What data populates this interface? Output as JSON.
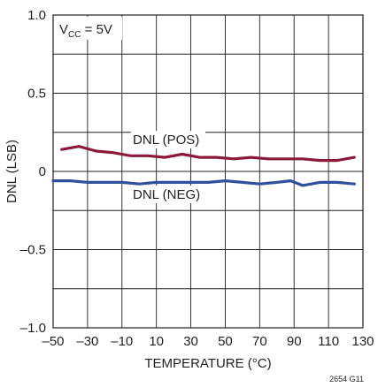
{
  "chart_data": {
    "type": "line",
    "xlabel": "TEMPERATURE (°C)",
    "ylabel": "DNL (LSB)",
    "xlim": [
      -50,
      130
    ],
    "ylim": [
      -1.0,
      1.0
    ],
    "x_ticks": [
      -50,
      -30,
      -10,
      10,
      30,
      50,
      70,
      90,
      110,
      130
    ],
    "x_tick_labels": [
      "–50",
      "–30",
      "–10",
      "10",
      "30",
      "50",
      "70",
      "90",
      "110",
      "130"
    ],
    "y_ticks": [
      1.0,
      0.5,
      0,
      -0.5,
      -1.0
    ],
    "y_tick_labels": [
      "1.0",
      "0.5",
      "0",
      "–0.5",
      "–1.0"
    ],
    "grid": true,
    "condition": {
      "main": "V",
      "sub": "CC",
      "rest": " = 5V"
    },
    "figure_id": "2654 G11",
    "series": [
      {
        "name": "DNL (POS)",
        "color": "#8b1a3a",
        "x": [
          -45,
          -35,
          -25,
          -15,
          -5,
          5,
          15,
          25,
          35,
          45,
          55,
          65,
          75,
          85,
          95,
          105,
          115,
          125
        ],
        "y": [
          0.14,
          0.16,
          0.13,
          0.12,
          0.1,
          0.1,
          0.09,
          0.11,
          0.09,
          0.09,
          0.08,
          0.09,
          0.08,
          0.08,
          0.08,
          0.07,
          0.07,
          0.09
        ]
      },
      {
        "name": "DNL (NEG)",
        "color": "#2e4f9c",
        "x": [
          -50,
          -40,
          -30,
          -20,
          -10,
          0,
          10,
          20,
          30,
          40,
          50,
          60,
          70,
          80,
          88,
          95,
          105,
          115,
          125
        ],
        "y": [
          -0.06,
          -0.06,
          -0.07,
          -0.07,
          -0.07,
          -0.08,
          -0.07,
          -0.07,
          -0.07,
          -0.07,
          -0.06,
          -0.07,
          -0.08,
          -0.07,
          -0.06,
          -0.09,
          -0.07,
          -0.07,
          -0.08
        ]
      }
    ]
  }
}
